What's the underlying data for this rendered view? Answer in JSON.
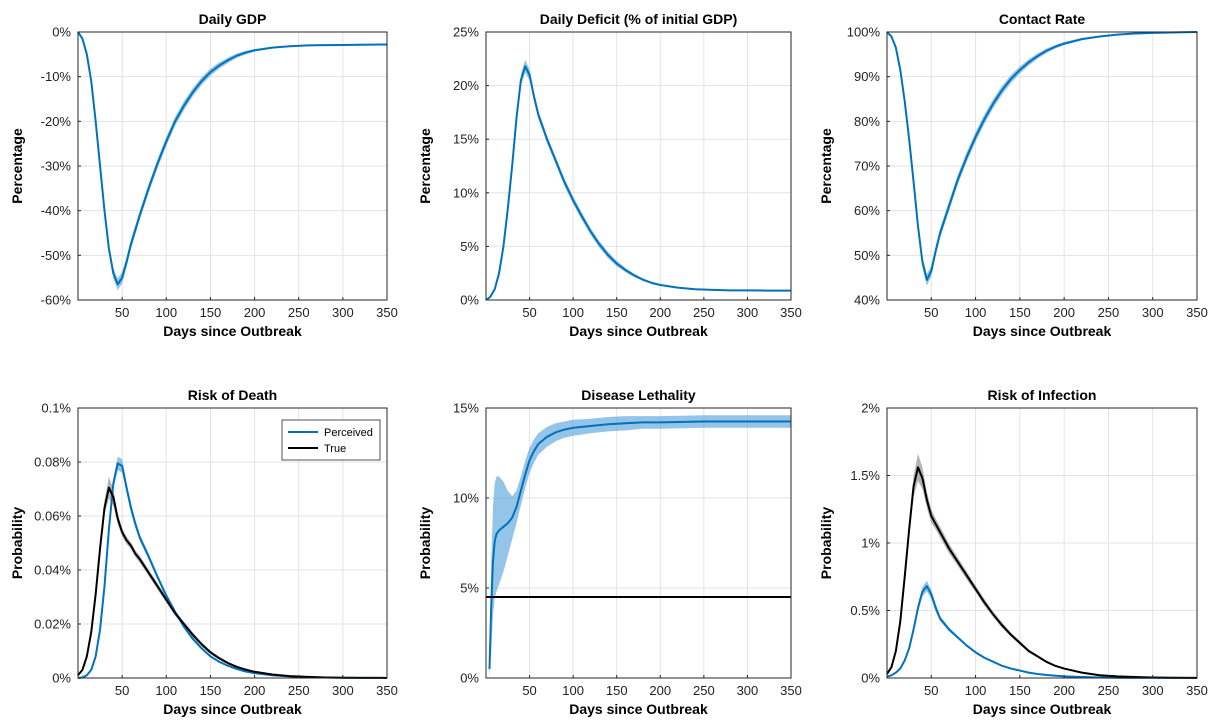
{
  "chart_data": [
    {
      "type": "line",
      "title": "Daily GDP",
      "xlabel": "Days since Outbreak",
      "ylabel": "Percentage",
      "xlim": [
        0,
        350
      ],
      "ylim": [
        -60,
        0
      ],
      "xticks": [
        50,
        100,
        150,
        200,
        250,
        300,
        350
      ],
      "yticks": [
        -60,
        -50,
        -40,
        -30,
        -20,
        -10,
        0
      ],
      "yticklabels": [
        "-60%",
        "-50%",
        "-40%",
        "-30%",
        "-20%",
        "-10%",
        "0%"
      ],
      "grid": true,
      "series": [
        {
          "color": "#0072BD",
          "band_color": "#5aa5dc",
          "x": [
            0,
            5,
            10,
            15,
            20,
            25,
            30,
            35,
            40,
            45,
            50,
            55,
            60,
            70,
            80,
            90,
            100,
            110,
            120,
            130,
            140,
            150,
            160,
            170,
            180,
            190,
            200,
            220,
            240,
            260,
            280,
            300,
            320,
            350
          ],
          "y": [
            0,
            -1.5,
            -5,
            -11,
            -20,
            -30,
            -40,
            -48.5,
            -54,
            -56.5,
            -55,
            -51.5,
            -47.5,
            -41,
            -35,
            -29.5,
            -24.5,
            -20,
            -16.5,
            -13.5,
            -11,
            -9,
            -7.5,
            -6.3,
            -5.3,
            -4.6,
            -4.1,
            -3.5,
            -3.2,
            -3.0,
            -2.95,
            -2.9,
            -2.85,
            -2.8
          ],
          "band": [
            0,
            0.1,
            0.3,
            0.5,
            0.7,
            0.9,
            1.0,
            1.1,
            1.2,
            1.3,
            1.3,
            1.2,
            1.1,
            1.0,
            1.0,
            1.0,
            1.0,
            1.0,
            1.0,
            0.9,
            0.9,
            0.8,
            0.7,
            0.6,
            0.5,
            0.4,
            0.3,
            0.2,
            0.1,
            0.1,
            0.05,
            0.05,
            0.05,
            0.05
          ]
        }
      ]
    },
    {
      "type": "line",
      "title": "Daily Deficit (% of initial GDP)",
      "xlabel": "Days since Outbreak",
      "ylabel": "Percentage",
      "xlim": [
        0,
        350
      ],
      "ylim": [
        0,
        25
      ],
      "xticks": [
        50,
        100,
        150,
        200,
        250,
        300,
        350
      ],
      "yticks": [
        0,
        5,
        10,
        15,
        20,
        25
      ],
      "yticklabels": [
        "0%",
        "5%",
        "10%",
        "15%",
        "20%",
        "25%"
      ],
      "grid": true,
      "series": [
        {
          "color": "#0072BD",
          "band_color": "#5aa5dc",
          "x": [
            0,
            5,
            10,
            15,
            20,
            25,
            30,
            35,
            40,
            45,
            50,
            55,
            60,
            70,
            80,
            90,
            100,
            110,
            120,
            130,
            140,
            150,
            160,
            170,
            180,
            190,
            200,
            220,
            240,
            260,
            280,
            300,
            320,
            350
          ],
          "y": [
            0,
            0.3,
            1.0,
            2.5,
            5.0,
            8.5,
            12.5,
            17.0,
            20.5,
            21.8,
            21.0,
            19.0,
            17.3,
            15.0,
            13.0,
            11.0,
            9.3,
            7.8,
            6.4,
            5.2,
            4.2,
            3.4,
            2.8,
            2.3,
            1.9,
            1.6,
            1.4,
            1.15,
            1.0,
            0.95,
            0.9,
            0.9,
            0.88,
            0.88
          ],
          "band": [
            0,
            0.05,
            0.1,
            0.15,
            0.2,
            0.3,
            0.4,
            0.5,
            0.55,
            0.6,
            0.5,
            0.45,
            0.4,
            0.35,
            0.35,
            0.35,
            0.35,
            0.35,
            0.3,
            0.3,
            0.3,
            0.25,
            0.2,
            0.15,
            0.12,
            0.1,
            0.08,
            0.05,
            0.03,
            0.02,
            0.02,
            0.02,
            0.02,
            0.02
          ]
        }
      ]
    },
    {
      "type": "line",
      "title": "Contact Rate",
      "xlabel": "Days since Outbreak",
      "ylabel": "Percentage",
      "xlim": [
        0,
        350
      ],
      "ylim": [
        40,
        100
      ],
      "xticks": [
        50,
        100,
        150,
        200,
        250,
        300,
        350
      ],
      "yticks": [
        40,
        50,
        60,
        70,
        80,
        90,
        100
      ],
      "yticklabels": [
        "40%",
        "50%",
        "60%",
        "70%",
        "80%",
        "90%",
        "100%"
      ],
      "grid": true,
      "series": [
        {
          "color": "#0072BD",
          "band_color": "#5aa5dc",
          "x": [
            0,
            5,
            10,
            15,
            20,
            25,
            30,
            35,
            40,
            45,
            50,
            55,
            60,
            70,
            80,
            90,
            100,
            110,
            120,
            130,
            140,
            150,
            160,
            170,
            180,
            190,
            200,
            220,
            240,
            260,
            280,
            300,
            320,
            350
          ],
          "y": [
            100,
            99,
            96.5,
            91.5,
            84.5,
            76,
            66.5,
            56.5,
            48.5,
            44.5,
            46.5,
            51,
            55,
            61,
            67,
            72,
            76.5,
            80.5,
            84,
            87,
            89.5,
            91.5,
            93.2,
            94.6,
            95.8,
            96.7,
            97.4,
            98.4,
            99.0,
            99.4,
            99.65,
            99.8,
            99.9,
            100
          ],
          "band": [
            0,
            0.1,
            0.3,
            0.5,
            0.7,
            0.9,
            1.0,
            1.1,
            1.2,
            1.3,
            1.2,
            1.1,
            1.1,
            1.1,
            1.1,
            1.1,
            1.1,
            1.1,
            1.0,
            1.0,
            0.9,
            0.8,
            0.7,
            0.6,
            0.5,
            0.4,
            0.35,
            0.25,
            0.15,
            0.1,
            0.06,
            0.04,
            0.03,
            0.02
          ]
        }
      ]
    },
    {
      "type": "line",
      "title": "Risk of Death",
      "xlabel": "Days since Outbreak",
      "ylabel": "Probability",
      "xlim": [
        0,
        350
      ],
      "ylim": [
        0,
        0.1
      ],
      "xticks": [
        50,
        100,
        150,
        200,
        250,
        300,
        350
      ],
      "yticks": [
        0,
        0.02,
        0.04,
        0.06,
        0.08,
        0.1
      ],
      "yticklabels": [
        "0%",
        "0.02%",
        "0.04%",
        "0.06%",
        "0.08%",
        "0.1%"
      ],
      "grid": true,
      "legend": {
        "location": "top-right"
      },
      "series": [
        {
          "name": "Perceived",
          "color": "#0072BD",
          "band_color": "#5aa5dc",
          "x": [
            0,
            5,
            10,
            15,
            20,
            25,
            30,
            35,
            40,
            45,
            50,
            55,
            60,
            65,
            70,
            80,
            90,
            100,
            110,
            120,
            130,
            140,
            150,
            160,
            170,
            180,
            190,
            200,
            220,
            240,
            260,
            280,
            300,
            320,
            350
          ],
          "y": [
            0,
            0.0002,
            0.001,
            0.003,
            0.008,
            0.018,
            0.034,
            0.055,
            0.072,
            0.0795,
            0.0785,
            0.0705,
            0.063,
            0.057,
            0.052,
            0.045,
            0.0375,
            0.0305,
            0.0245,
            0.019,
            0.0145,
            0.011,
            0.008,
            0.006,
            0.0045,
            0.0033,
            0.0024,
            0.0018,
            0.001,
            0.0006,
            0.0003,
            0.0002,
            0.0001,
            5e-05,
            2e-05
          ],
          "band": [
            0,
            0.0001,
            0.0002,
            0.0003,
            0.0005,
            0.0008,
            0.001,
            0.0015,
            0.002,
            0.0025,
            0.0025,
            0.002,
            0.0018,
            0.0015,
            0.0013,
            0.0012,
            0.001,
            0.0009,
            0.0008,
            0.0007,
            0.0006,
            0.0005,
            0.0004,
            0.0003,
            0.0002,
            0.0002,
            0.0001,
            0.0001,
            0.0001,
            5e-05,
            3e-05,
            2e-05,
            1e-05,
            1e-05,
            1e-05
          ]
        },
        {
          "name": "True",
          "color": "#000000",
          "band_color": "#8a8a8a",
          "x": [
            0,
            5,
            10,
            15,
            20,
            25,
            30,
            35,
            40,
            45,
            50,
            55,
            60,
            65,
            70,
            80,
            90,
            100,
            110,
            120,
            130,
            140,
            150,
            160,
            170,
            180,
            190,
            200,
            220,
            240,
            260,
            280,
            300,
            320,
            350
          ],
          "y": [
            0.001,
            0.003,
            0.008,
            0.017,
            0.031,
            0.048,
            0.063,
            0.0705,
            0.067,
            0.059,
            0.054,
            0.051,
            0.049,
            0.046,
            0.044,
            0.039,
            0.034,
            0.029,
            0.024,
            0.02,
            0.016,
            0.0125,
            0.0095,
            0.0073,
            0.0055,
            0.0041,
            0.0031,
            0.0023,
            0.0013,
            0.0007,
            0.0004,
            0.0002,
            0.0001,
            5e-05,
            2e-05
          ],
          "band": [
            0.0001,
            0.0002,
            0.0004,
            0.0007,
            0.001,
            0.0015,
            0.0025,
            0.004,
            0.003,
            0.002,
            0.0015,
            0.0014,
            0.0013,
            0.0013,
            0.0013,
            0.0012,
            0.0012,
            0.0011,
            0.001,
            0.0009,
            0.0009,
            0.0008,
            0.0007,
            0.0006,
            0.0005,
            0.0004,
            0.0003,
            0.0002,
            0.0001,
            0.0001,
            5e-05,
            3e-05,
            2e-05,
            1e-05,
            1e-05
          ]
        }
      ]
    },
    {
      "type": "line",
      "title": "Disease Lethality",
      "xlabel": "Days since Outbreak",
      "ylabel": "Probability",
      "xlim": [
        0,
        350
      ],
      "ylim": [
        0,
        15
      ],
      "xticks": [
        50,
        100,
        150,
        200,
        250,
        300,
        350
      ],
      "yticks": [
        0,
        5,
        10,
        15
      ],
      "yticklabels": [
        "0%",
        "5%",
        "10%",
        "15%"
      ],
      "grid": true,
      "series": [
        {
          "color": "#0072BD",
          "band_color": "#5aa5dc",
          "x": [
            4,
            6,
            8,
            10,
            12,
            15,
            20,
            25,
            30,
            35,
            40,
            45,
            50,
            55,
            60,
            70,
            80,
            90,
            100,
            120,
            140,
            160,
            180,
            200,
            250,
            300,
            350
          ],
          "y": [
            0.5,
            4.0,
            6.5,
            7.6,
            8.0,
            8.2,
            8.4,
            8.6,
            8.9,
            9.5,
            10.4,
            11.3,
            12.1,
            12.6,
            13.0,
            13.4,
            13.65,
            13.8,
            13.9,
            14.0,
            14.1,
            14.15,
            14.2,
            14.2,
            14.25,
            14.25,
            14.25
          ],
          "band": [
            0.5,
            2.5,
            3.0,
            3.2,
            3.2,
            3.0,
            2.5,
            1.8,
            1.2,
            0.9,
            0.8,
            0.75,
            0.7,
            0.65,
            0.6,
            0.55,
            0.5,
            0.45,
            0.45,
            0.4,
            0.4,
            0.4,
            0.35,
            0.35,
            0.35,
            0.35,
            0.35
          ]
        },
        {
          "color": "#000000",
          "x": [
            0,
            350
          ],
          "y": [
            4.5,
            4.5
          ]
        }
      ]
    },
    {
      "type": "line",
      "title": "Risk of Infection",
      "xlabel": "Days since Outbreak",
      "ylabel": "Probability",
      "xlim": [
        0,
        350
      ],
      "ylim": [
        0,
        2
      ],
      "xticks": [
        50,
        100,
        150,
        200,
        250,
        300,
        350
      ],
      "yticks": [
        0,
        0.5,
        1,
        1.5,
        2
      ],
      "yticklabels": [
        "0%",
        "0.5%",
        "1%",
        "1.5%",
        "2%"
      ],
      "grid": true,
      "series": [
        {
          "color": "#0072BD",
          "band_color": "#5aa5dc",
          "x": [
            0,
            5,
            10,
            15,
            20,
            25,
            30,
            35,
            40,
            45,
            50,
            55,
            60,
            70,
            80,
            90,
            100,
            110,
            120,
            130,
            140,
            150,
            160,
            170,
            180,
            200,
            220,
            240,
            260,
            280,
            300,
            320,
            350
          ],
          "y": [
            0.01,
            0.02,
            0.04,
            0.07,
            0.13,
            0.22,
            0.36,
            0.52,
            0.64,
            0.68,
            0.62,
            0.52,
            0.44,
            0.36,
            0.3,
            0.24,
            0.19,
            0.15,
            0.12,
            0.09,
            0.07,
            0.055,
            0.04,
            0.03,
            0.022,
            0.012,
            0.007,
            0.004,
            0.002,
            0.001,
            0.0008,
            0.0005,
            0.0003
          ],
          "band": [
            0.001,
            0.002,
            0.004,
            0.007,
            0.01,
            0.015,
            0.02,
            0.03,
            0.035,
            0.04,
            0.035,
            0.03,
            0.02,
            0.015,
            0.01,
            0.008,
            0.006,
            0.005,
            0.004,
            0.003,
            0.003,
            0.002,
            0.002,
            0.002,
            0.001,
            0.001,
            0.001,
            0.0005,
            0.0005,
            0.0003,
            0.0002,
            0.0002,
            0.0001
          ]
        },
        {
          "color": "#000000",
          "band_color": "#8a8a8a",
          "x": [
            0,
            5,
            10,
            15,
            20,
            25,
            30,
            35,
            40,
            45,
            50,
            55,
            60,
            70,
            80,
            90,
            100,
            110,
            120,
            130,
            140,
            150,
            160,
            170,
            180,
            190,
            200,
            220,
            240,
            260,
            280,
            300,
            320,
            350
          ],
          "y": [
            0.03,
            0.08,
            0.2,
            0.42,
            0.75,
            1.1,
            1.42,
            1.56,
            1.48,
            1.32,
            1.2,
            1.14,
            1.08,
            0.96,
            0.86,
            0.76,
            0.66,
            0.56,
            0.47,
            0.39,
            0.32,
            0.26,
            0.2,
            0.16,
            0.12,
            0.09,
            0.07,
            0.04,
            0.02,
            0.012,
            0.007,
            0.004,
            0.002,
            0.001
          ],
          "band": [
            0.003,
            0.006,
            0.012,
            0.02,
            0.03,
            0.05,
            0.08,
            0.1,
            0.08,
            0.06,
            0.05,
            0.04,
            0.04,
            0.035,
            0.03,
            0.03,
            0.025,
            0.025,
            0.02,
            0.02,
            0.015,
            0.015,
            0.01,
            0.01,
            0.008,
            0.006,
            0.005,
            0.003,
            0.002,
            0.001,
            0.001,
            0.0005,
            0.0003,
            0.0002
          ]
        }
      ]
    }
  ]
}
